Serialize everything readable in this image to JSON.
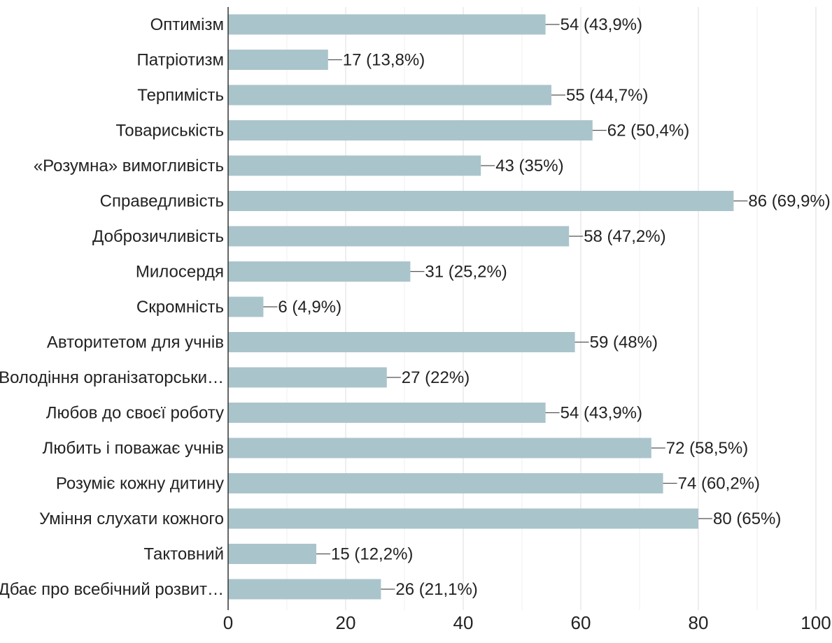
{
  "chart_data": {
    "type": "bar",
    "orientation": "horizontal",
    "title": "",
    "xlabel": "",
    "ylabel": "",
    "xlim": [
      0,
      100
    ],
    "xticks": [
      0,
      20,
      40,
      60,
      80,
      100
    ],
    "grid": true,
    "legend": "none",
    "bar_color": "#aac4cb",
    "categories": [
      "Оптимізм",
      "Патріотизм",
      "Терпимість",
      "Товариськість",
      "«Розумна» вимогливість",
      "Справедливість",
      "Доброзичливість",
      "Милосердя",
      "Скромність",
      "Авторитетом для учнів",
      "Володіння організаторськи…",
      "Любов до своєї роботу",
      "Любить і поважає учнів",
      "Розуміє кожну дитину",
      "Уміння слухати кожного",
      "Тактовний",
      "Дбає про всебічний розвит…"
    ],
    "values": [
      54,
      17,
      55,
      62,
      43,
      86,
      58,
      31,
      6,
      59,
      27,
      54,
      72,
      74,
      80,
      15,
      26
    ],
    "data_labels": [
      "54 (43,9%)",
      "17 (13,8%)",
      "55 (44,7%)",
      "62 (50,4%)",
      "43 (35%)",
      "86 (69,9%)",
      "58 (47,2%)",
      "31 (25,2%)",
      "6 (4,9%)",
      "59 (48%)",
      "27 (22%)",
      "54 (43,9%)",
      "72 (58,5%)",
      "74 (60,2%)",
      "80 (65%)",
      "15 (12,2%)",
      "26 (21,1%)"
    ]
  }
}
